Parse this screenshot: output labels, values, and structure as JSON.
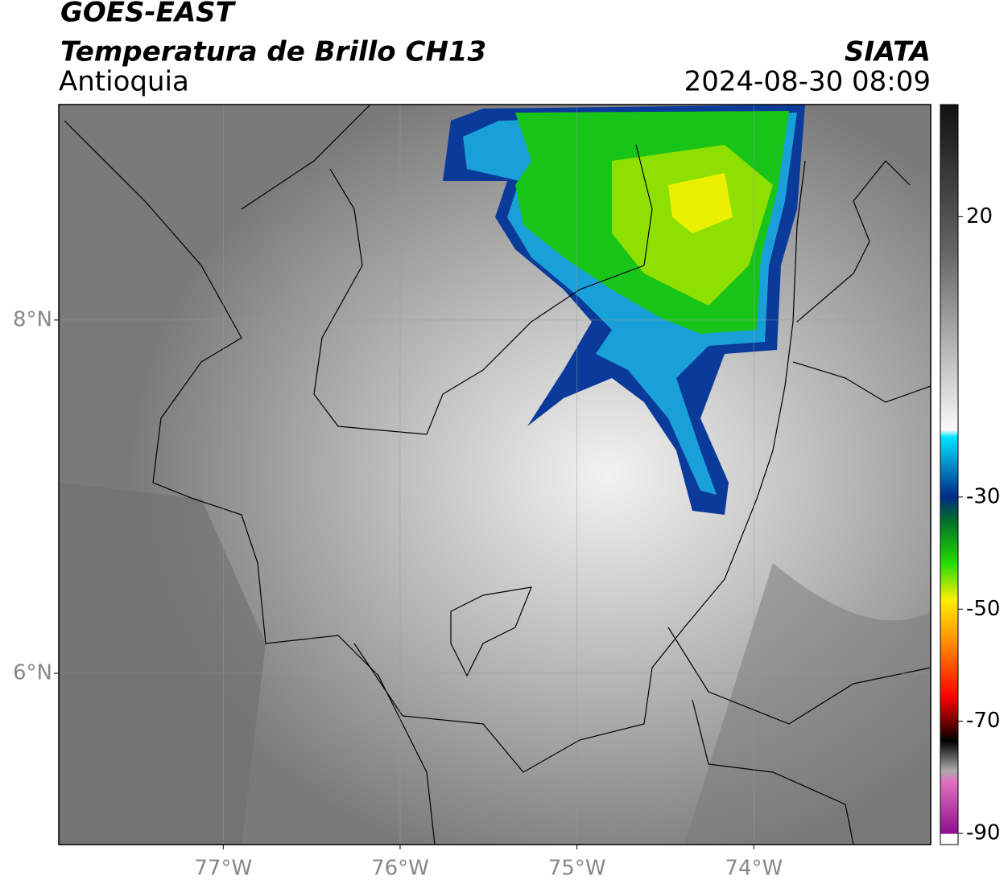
{
  "header": {
    "title": "GOES-EAST",
    "subtitle": "Temperatura de Brillo CH13",
    "region": "Antioquia",
    "source": "SIATA",
    "datetime": "2024-08-30 08:09"
  },
  "map": {
    "xlim": [
      -77.93,
      -73.0
    ],
    "ylim": [
      5.03,
      9.22
    ],
    "xticks": [
      {
        "value": -77,
        "label": "77°W"
      },
      {
        "value": -76,
        "label": "76°W"
      },
      {
        "value": -75,
        "label": "75°W"
      },
      {
        "value": -74,
        "label": "74°W"
      }
    ],
    "yticks": [
      {
        "value": 8,
        "label": "8°N"
      },
      {
        "value": 6,
        "label": "6°N"
      }
    ],
    "grid": true
  },
  "colorbar": {
    "range": [
      -92,
      40
    ],
    "ticks": [
      20,
      -30,
      -50,
      -70,
      -90
    ]
  }
}
